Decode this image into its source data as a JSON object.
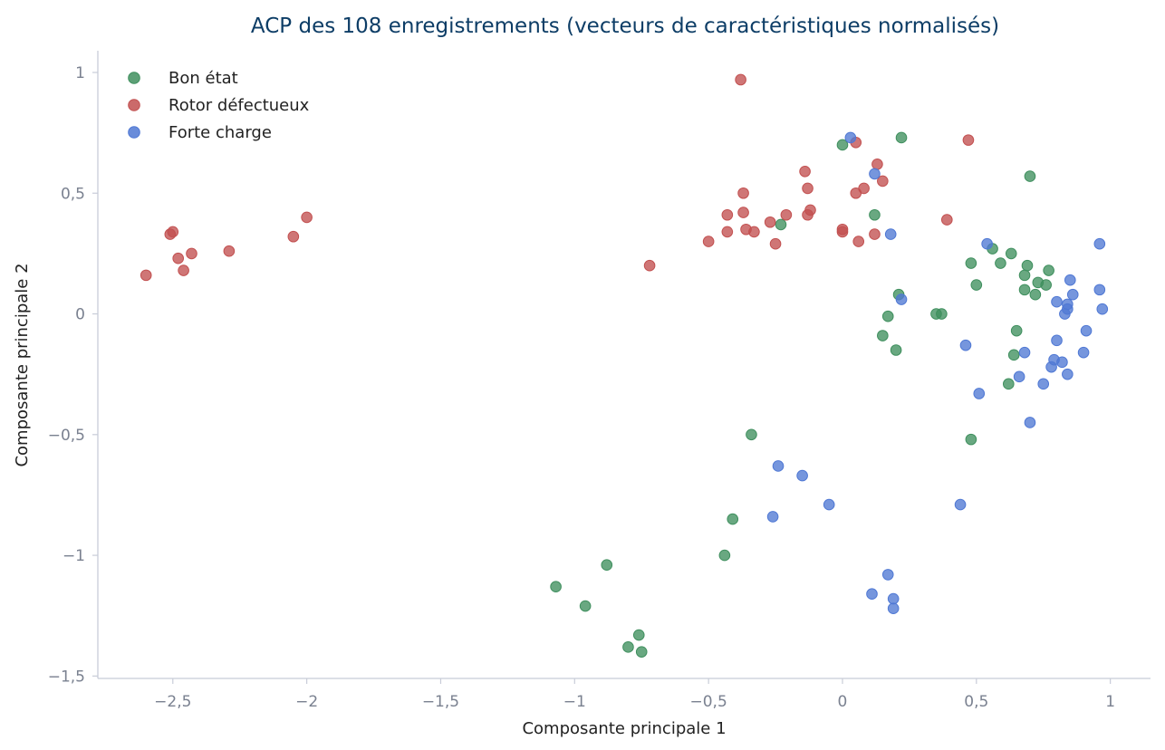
{
  "chart_data": {
    "type": "scatter",
    "title": "ACP des 108 enregistrements (vecteurs de caractéristiques normalisés)",
    "xlabel": "Composante principale 1",
    "ylabel": "Composante principale 2",
    "xlim": [
      -2.78,
      1.15
    ],
    "ylim": [
      -1.51,
      1.09
    ],
    "xticks": [
      -2.5,
      -2,
      -1.5,
      -1,
      -0.5,
      0,
      0.5,
      1
    ],
    "xtick_labels": [
      "−2,5",
      "−2",
      "−1,5",
      "−1",
      "−0,5",
      "0",
      "0,5",
      "1"
    ],
    "yticks": [
      1,
      0.5,
      0,
      -0.5,
      -1,
      -1.5
    ],
    "ytick_labels": [
      "1",
      "0,5",
      "0",
      "−0,5",
      "−1",
      "−1,5"
    ],
    "grid": false,
    "legend_position": "top-left",
    "series": [
      {
        "name": "Bon état",
        "color": "#3f8f5e",
        "points": [
          [
            0.0,
            0.7
          ],
          [
            0.22,
            0.73
          ],
          [
            0.7,
            0.57
          ],
          [
            0.12,
            0.41
          ],
          [
            -0.23,
            0.37
          ],
          [
            0.56,
            0.27
          ],
          [
            0.63,
            0.25
          ],
          [
            0.48,
            0.21
          ],
          [
            0.59,
            0.21
          ],
          [
            0.69,
            0.2
          ],
          [
            0.77,
            0.18
          ],
          [
            0.68,
            0.16
          ],
          [
            0.73,
            0.13
          ],
          [
            0.76,
            0.12
          ],
          [
            0.5,
            0.12
          ],
          [
            0.68,
            0.1
          ],
          [
            0.72,
            0.08
          ],
          [
            0.21,
            0.08
          ],
          [
            0.35,
            0.0
          ],
          [
            0.37,
            0.0
          ],
          [
            0.17,
            -0.01
          ],
          [
            0.65,
            -0.07
          ],
          [
            0.15,
            -0.09
          ],
          [
            0.2,
            -0.15
          ],
          [
            0.64,
            -0.17
          ],
          [
            0.62,
            -0.29
          ],
          [
            -0.34,
            -0.5
          ],
          [
            0.48,
            -0.52
          ],
          [
            -0.41,
            -0.85
          ],
          [
            -0.44,
            -1.0
          ],
          [
            -0.88,
            -1.04
          ],
          [
            -1.07,
            -1.13
          ],
          [
            -0.96,
            -1.21
          ],
          [
            -0.76,
            -1.33
          ],
          [
            -0.8,
            -1.38
          ],
          [
            -0.75,
            -1.4
          ]
        ]
      },
      {
        "name": "Rotor défectueux",
        "color": "#c25050",
        "points": [
          [
            -0.38,
            0.97
          ],
          [
            0.05,
            0.71
          ],
          [
            0.47,
            0.72
          ],
          [
            0.13,
            0.62
          ],
          [
            -0.14,
            0.59
          ],
          [
            0.15,
            0.55
          ],
          [
            -0.13,
            0.52
          ],
          [
            0.08,
            0.52
          ],
          [
            0.05,
            0.5
          ],
          [
            -0.37,
            0.5
          ],
          [
            -0.12,
            0.43
          ],
          [
            -0.37,
            0.42
          ],
          [
            -0.43,
            0.41
          ],
          [
            -0.21,
            0.41
          ],
          [
            -0.13,
            0.41
          ],
          [
            -2.0,
            0.4
          ],
          [
            0.39,
            0.39
          ],
          [
            -0.27,
            0.38
          ],
          [
            -0.36,
            0.35
          ],
          [
            0.0,
            0.35
          ],
          [
            -0.33,
            0.34
          ],
          [
            -0.43,
            0.34
          ],
          [
            0.0,
            0.34
          ],
          [
            0.12,
            0.33
          ],
          [
            -2.51,
            0.33
          ],
          [
            -2.5,
            0.34
          ],
          [
            -2.05,
            0.32
          ],
          [
            0.06,
            0.3
          ],
          [
            -0.5,
            0.3
          ],
          [
            -0.25,
            0.29
          ],
          [
            -2.29,
            0.26
          ],
          [
            -2.43,
            0.25
          ],
          [
            -2.48,
            0.23
          ],
          [
            -2.46,
            0.18
          ],
          [
            -0.72,
            0.2
          ],
          [
            -2.6,
            0.16
          ]
        ]
      },
      {
        "name": "Forte charge",
        "color": "#4f78d4",
        "points": [
          [
            0.03,
            0.73
          ],
          [
            0.12,
            0.58
          ],
          [
            0.18,
            0.33
          ],
          [
            0.54,
            0.29
          ],
          [
            0.96,
            0.29
          ],
          [
            0.85,
            0.14
          ],
          [
            0.96,
            0.1
          ],
          [
            0.86,
            0.08
          ],
          [
            0.22,
            0.06
          ],
          [
            0.8,
            0.05
          ],
          [
            0.84,
            0.04
          ],
          [
            0.84,
            0.02
          ],
          [
            0.97,
            0.02
          ],
          [
            0.83,
            0.0
          ],
          [
            0.91,
            -0.07
          ],
          [
            0.46,
            -0.13
          ],
          [
            0.8,
            -0.11
          ],
          [
            0.68,
            -0.16
          ],
          [
            0.9,
            -0.16
          ],
          [
            0.79,
            -0.19
          ],
          [
            0.82,
            -0.2
          ],
          [
            0.78,
            -0.22
          ],
          [
            0.84,
            -0.25
          ],
          [
            0.66,
            -0.26
          ],
          [
            0.75,
            -0.29
          ],
          [
            0.51,
            -0.33
          ],
          [
            0.7,
            -0.45
          ],
          [
            -0.24,
            -0.63
          ],
          [
            -0.15,
            -0.67
          ],
          [
            -0.05,
            -0.79
          ],
          [
            0.44,
            -0.79
          ],
          [
            -0.26,
            -0.84
          ],
          [
            0.17,
            -1.08
          ],
          [
            0.11,
            -1.16
          ],
          [
            0.19,
            -1.18
          ],
          [
            0.19,
            -1.22
          ]
        ]
      }
    ]
  }
}
